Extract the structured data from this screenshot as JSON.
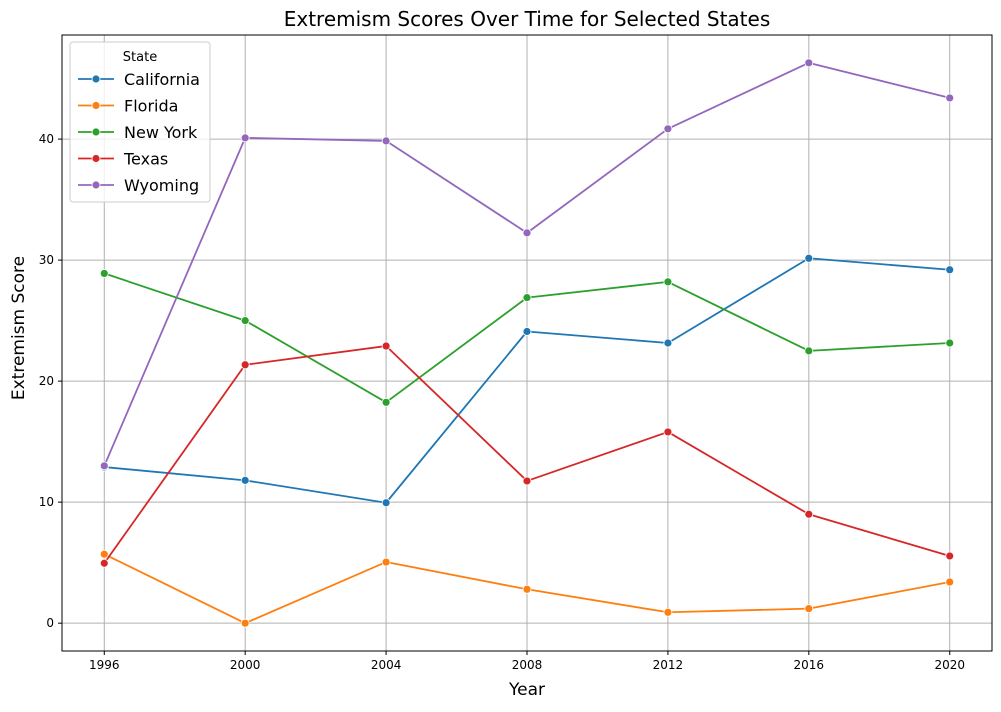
{
  "chart_data": {
    "type": "line",
    "title": "Extremism Scores Over Time for Selected States",
    "xlabel": "Year",
    "ylabel": "Extremism Score",
    "x": [
      1996,
      2000,
      2004,
      2008,
      2012,
      2016,
      2020
    ],
    "xticks": [
      "1996",
      "2000",
      "2004",
      "2008",
      "2012",
      "2016",
      "2020"
    ],
    "yticks": [
      "0",
      "10",
      "20",
      "30",
      "40"
    ],
    "xlim": [
      1994.8,
      2021.2
    ],
    "ylim": [
      -2.3,
      48.6
    ],
    "grid": true,
    "legend": {
      "title": "State",
      "position": "top-left"
    },
    "series": [
      {
        "name": "California",
        "color": "#1f77b4",
        "values": [
          12.9,
          11.8,
          9.95,
          24.1,
          23.15,
          30.15,
          29.2
        ]
      },
      {
        "name": "Florida",
        "color": "#ff7f0e",
        "values": [
          5.7,
          0.0,
          5.05,
          2.8,
          0.9,
          1.2,
          3.4
        ]
      },
      {
        "name": "New York",
        "color": "#2ca02c",
        "values": [
          28.9,
          25.0,
          18.25,
          26.9,
          28.2,
          22.5,
          23.15
        ]
      },
      {
        "name": "Texas",
        "color": "#d62728",
        "values": [
          4.95,
          21.35,
          22.9,
          11.75,
          15.8,
          9.0,
          5.55
        ]
      },
      {
        "name": "Wyoming",
        "color": "#9467bd",
        "values": [
          13.0,
          40.1,
          39.85,
          32.25,
          40.85,
          46.3,
          43.4
        ]
      }
    ]
  }
}
